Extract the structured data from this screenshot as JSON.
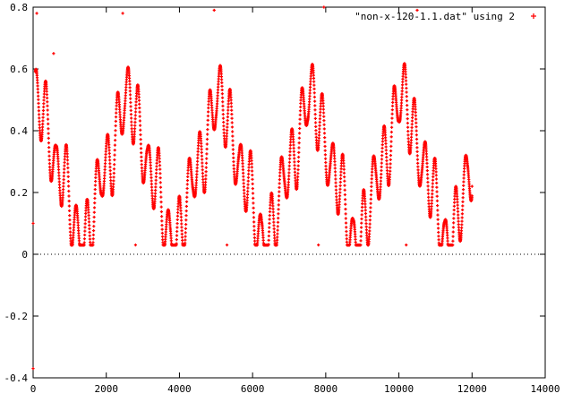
{
  "chart_data": {
    "type": "scatter",
    "title": "",
    "xlabel": "",
    "ylabel": "",
    "xlim": [
      0,
      14000
    ],
    "ylim": [
      -0.4,
      0.8
    ],
    "x_ticks": [
      0,
      2000,
      4000,
      6000,
      8000,
      10000,
      12000,
      14000
    ],
    "y_ticks": [
      -0.4,
      -0.2,
      0,
      0.2,
      0.4,
      0.6,
      0.8
    ],
    "x_tick_labels": [
      "0",
      "2000",
      "4000",
      "6000",
      "8000",
      "10000",
      "12000",
      "14000"
    ],
    "y_tick_labels": [
      "-0.4",
      "-0.2",
      "0",
      "0.2",
      "0.4",
      "0.6",
      "0.8"
    ],
    "grid": false,
    "legend_position": "top-right",
    "marker_color": "#ff0000",
    "series": [
      {
        "name": "\"non-x-120-1.1.dat\" using 2",
        "x_range": [
          0,
          12000
        ],
        "base": 0.27,
        "slow_oscillation": {
          "period": 2500,
          "amplitude": 0.24
        },
        "fast_oscillation": {
          "period": 280,
          "amplitude": 0.22
        },
        "points": [
          {
            "x": 0,
            "y": -0.37
          },
          {
            "x": 0,
            "y": 0.1
          },
          {
            "x": 100,
            "y": 0.78
          },
          {
            "x": 560,
            "y": 0.65
          },
          {
            "x": 2450,
            "y": 0.78
          },
          {
            "x": 2800,
            "y": 0.03
          },
          {
            "x": 4950,
            "y": 0.79
          },
          {
            "x": 5300,
            "y": 0.03
          },
          {
            "x": 7950,
            "y": 0.8
          },
          {
            "x": 7800,
            "y": 0.03
          },
          {
            "x": 10500,
            "y": 0.79
          },
          {
            "x": 10200,
            "y": 0.03
          },
          {
            "x": 12000,
            "y": 0.22
          }
        ]
      }
    ]
  }
}
